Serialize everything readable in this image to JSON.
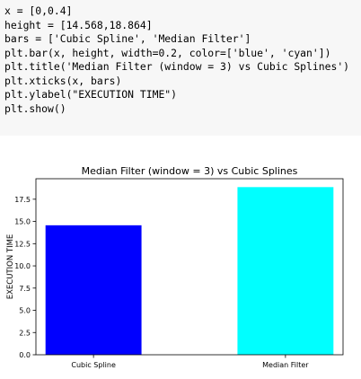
{
  "code": {
    "lines": [
      "x = [0,0.4]",
      "height = [14.568,18.864]",
      "bars = ['Cubic Spline', 'Median Filter']",
      "plt.bar(x, height, width=0.2, color=['blue', 'cyan'])",
      "plt.title('Median Filter (window = 3) vs Cubic Splines')",
      "plt.xticks(x, bars)",
      "plt.ylabel(\"EXECUTION TIME\")",
      "plt.show()"
    ]
  },
  "chart_data": {
    "type": "bar",
    "title": "Median Filter (window = 3) vs Cubic Splines",
    "ylabel": "EXECUTION TIME",
    "xlabel": "",
    "categories": [
      "Cubic Spline",
      "Median Filter"
    ],
    "x": [
      0,
      0.4
    ],
    "values": [
      14.568,
      18.864
    ],
    "bar_width": 0.2,
    "colors": [
      "#0000ff",
      "#00ffff"
    ],
    "xlim": [
      -0.12,
      0.52
    ],
    "ylim": [
      0,
      19.807
    ],
    "yticks": [
      0.0,
      2.5,
      5.0,
      7.5,
      10.0,
      12.5,
      15.0,
      17.5
    ],
    "ytick_labels": [
      "0.0",
      "2.5",
      "5.0",
      "7.5",
      "10.0",
      "12.5",
      "15.0",
      "17.5"
    ],
    "grid": false,
    "legend": "none"
  }
}
